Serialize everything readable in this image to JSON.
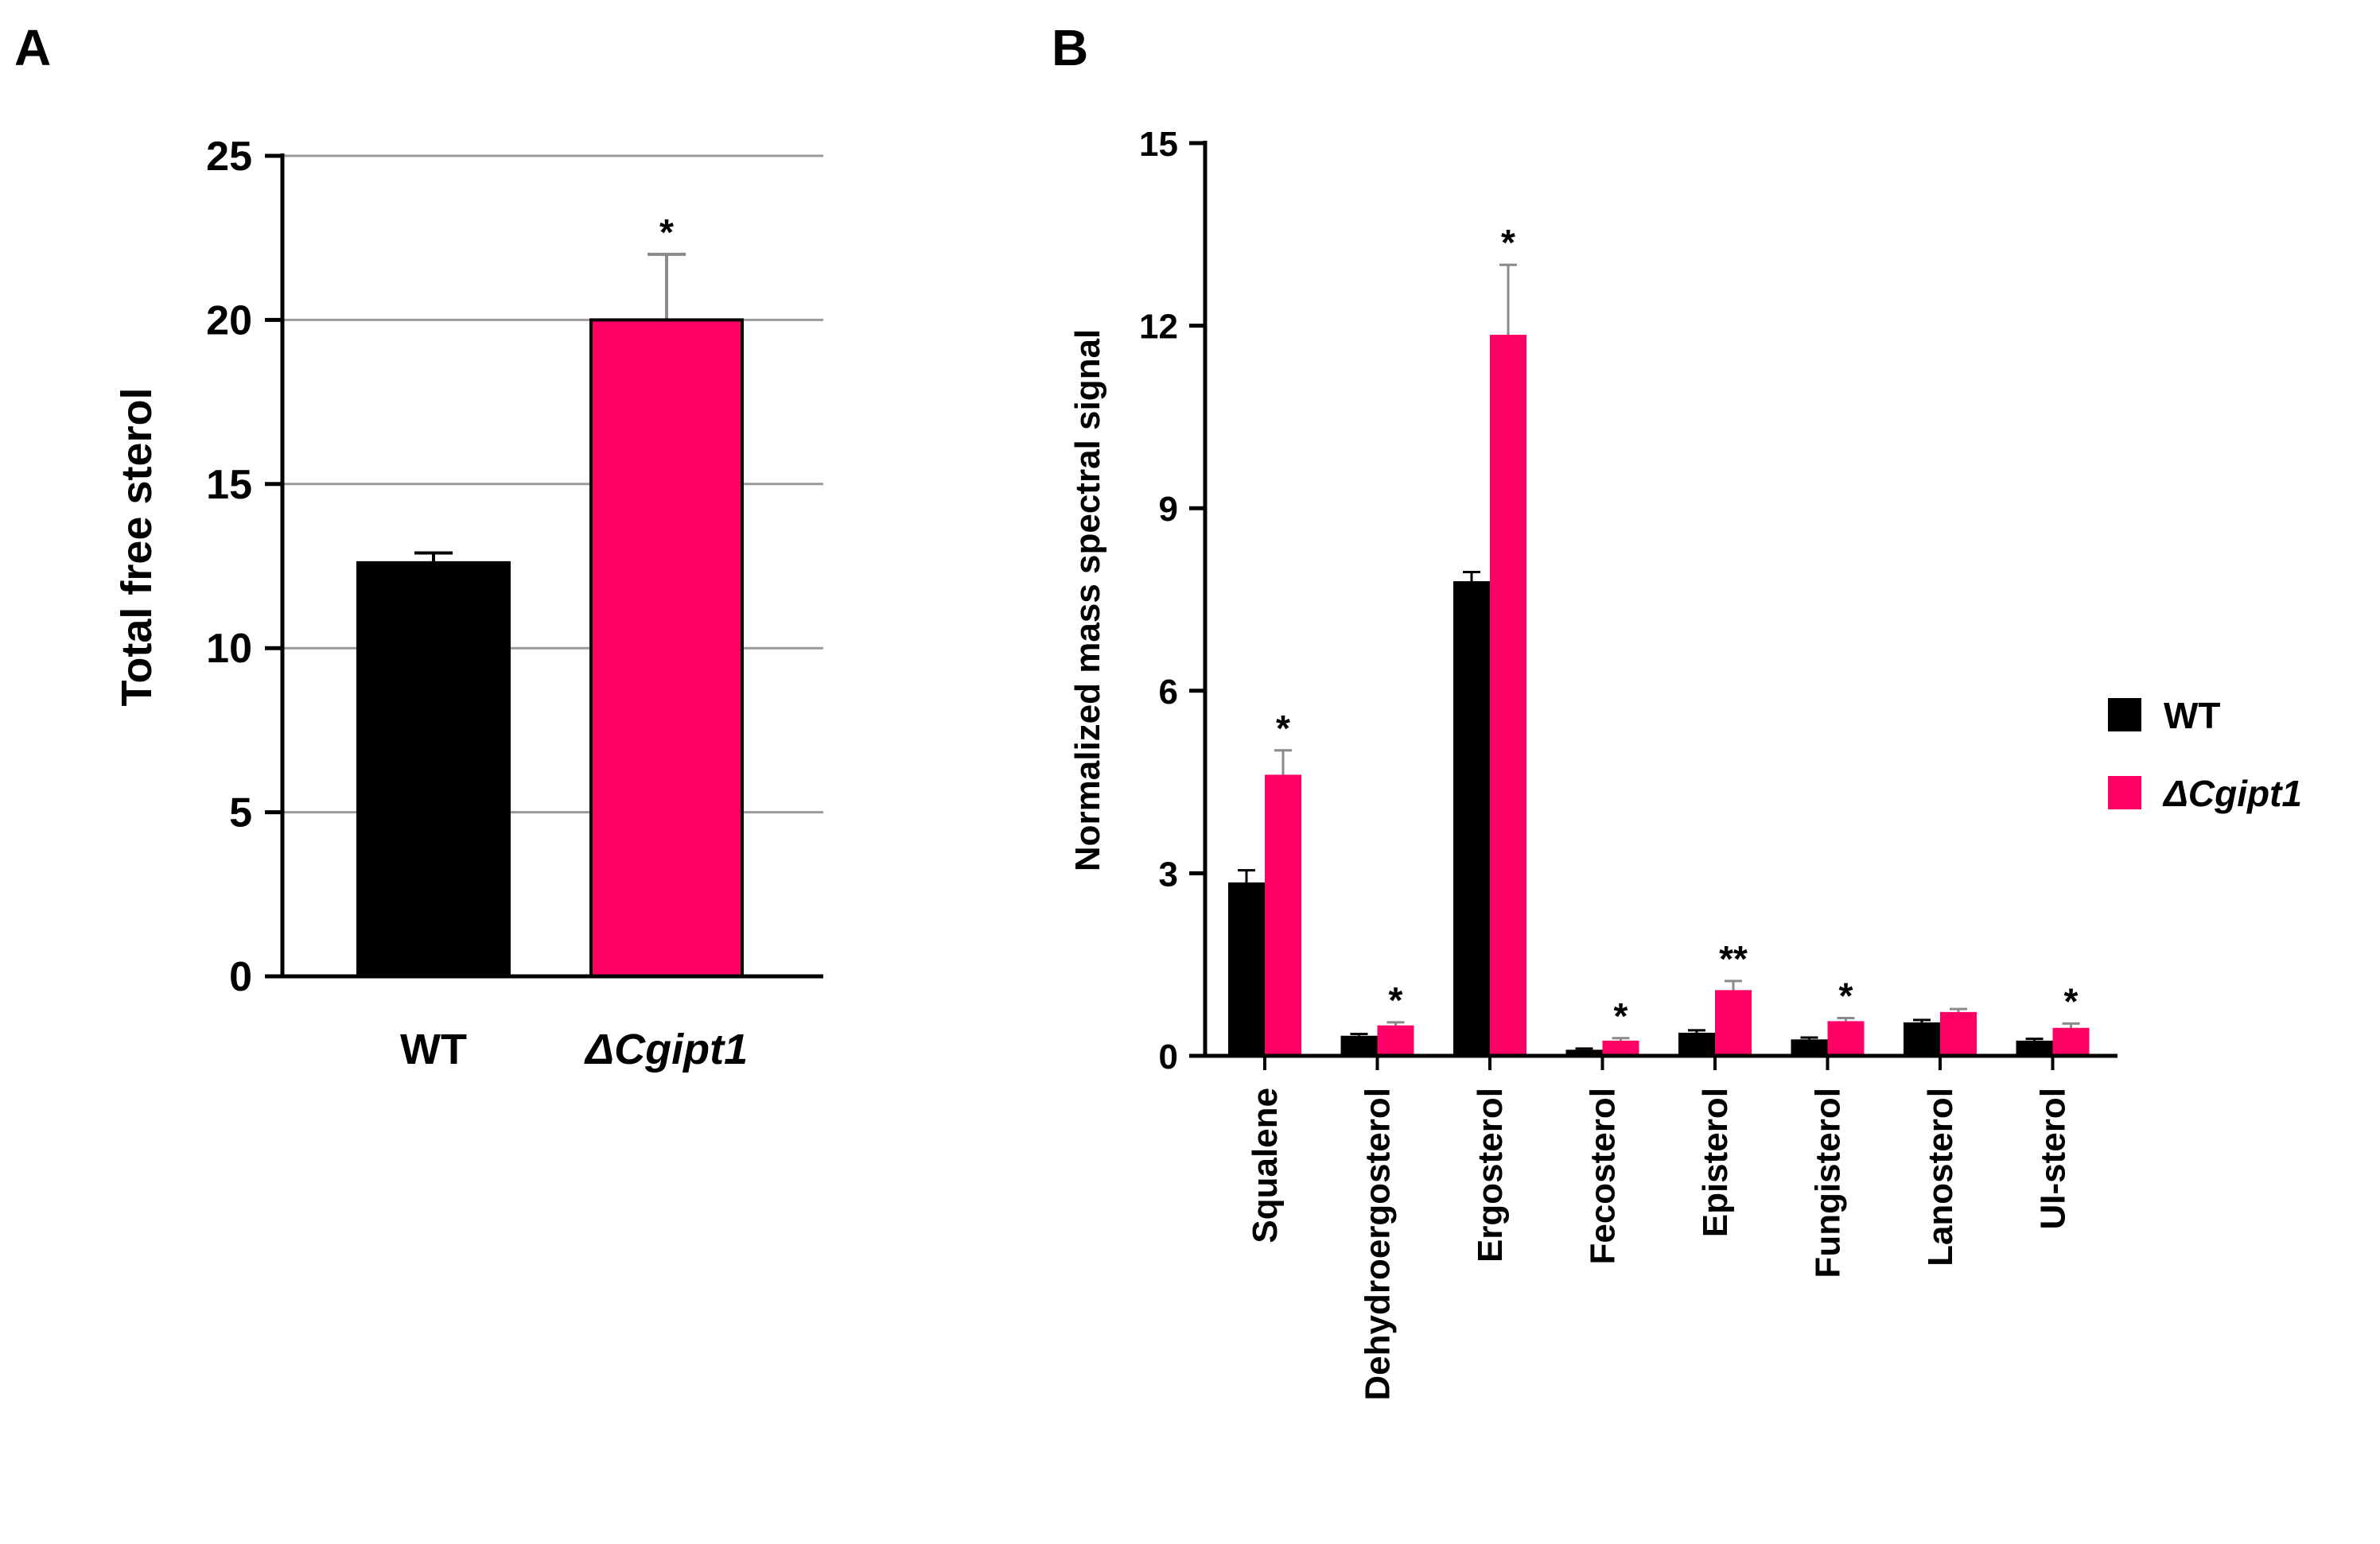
{
  "colors": {
    "wt": "#000000",
    "mutant": "#ff0066",
    "grid": "#9a9a9a",
    "axis": "#000000",
    "error_bar_mutant": "#8a8a8a"
  },
  "chart_data": [
    {
      "panel": "A",
      "type": "bar",
      "title": "",
      "xlabel": "",
      "ylabel": "Total free sterol",
      "ylim": [
        0,
        25
      ],
      "yticks": [
        0,
        5,
        10,
        15,
        20,
        25
      ],
      "grid": true,
      "categories": [
        "WT",
        "ΔCgipt1"
      ],
      "values": [
        12.6,
        20.0
      ],
      "errors": [
        0.3,
        2.0
      ],
      "significance": [
        "",
        "*"
      ]
    },
    {
      "panel": "B",
      "type": "bar",
      "title": "",
      "xlabel": "",
      "ylabel": "Normalized mass spectral signal",
      "ylim": [
        0,
        15
      ],
      "yticks": [
        0,
        3,
        6,
        9,
        12,
        15
      ],
      "grid": false,
      "legend_position": "right",
      "categories": [
        "Squalene",
        "Dehydroergosterol",
        "Ergosterol",
        "Fecosterol",
        "Episterol",
        "Fungisterol",
        "Lanosterol",
        "UI-sterol"
      ],
      "series": [
        {
          "name": "WT",
          "values": [
            2.85,
            0.33,
            7.8,
            0.1,
            0.38,
            0.27,
            0.55,
            0.25
          ],
          "errors": [
            0.2,
            0.03,
            0.15,
            0.02,
            0.04,
            0.03,
            0.04,
            0.03
          ]
        },
        {
          "name": "ΔCgipt1",
          "values": [
            4.62,
            0.5,
            11.85,
            0.25,
            1.08,
            0.57,
            0.72,
            0.46
          ],
          "errors": [
            0.4,
            0.05,
            1.15,
            0.04,
            0.15,
            0.05,
            0.05,
            0.07
          ]
        }
      ],
      "significance": [
        "*",
        "*",
        "*",
        "*",
        "**",
        "*",
        "",
        "*"
      ]
    }
  ]
}
